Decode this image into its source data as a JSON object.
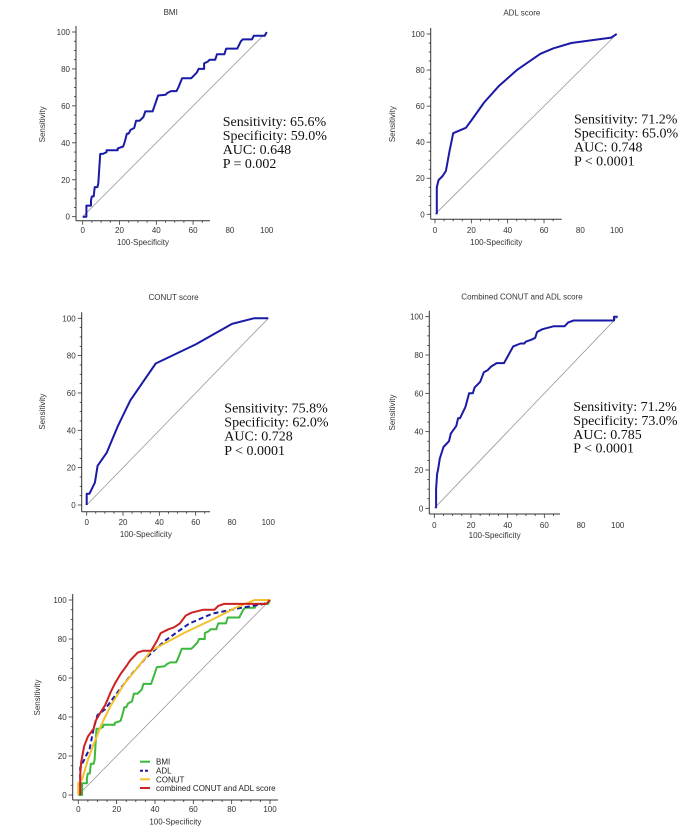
{
  "chart_data": [
    {
      "type": "line",
      "title": "BMI",
      "xlabel": "100-Specificity",
      "ylabel": "Sensitivity",
      "xlim": [
        0,
        100
      ],
      "ylim": [
        0,
        100
      ],
      "xticks": [
        "0",
        "20",
        "40",
        "60",
        "80",
        "100"
      ],
      "yticks": [
        "0",
        "20",
        "40",
        "60",
        "80",
        "100"
      ],
      "stats": [
        "Sensitivity: 65.6%",
        "Specificity: 59.0%",
        "AUC: 0.648",
        "P = 0.002"
      ],
      "series": [
        {
          "name": "BMI",
          "color": "#1a1aa6",
          "points": [
            [
              0,
              0
            ],
            [
              2,
              0
            ],
            [
              2,
              6
            ],
            [
              4.5,
              6
            ],
            [
              4.5,
              9
            ],
            [
              5,
              11
            ],
            [
              6,
              11
            ],
            [
              6.5,
              16
            ],
            [
              8,
              16
            ],
            [
              8.5,
              18
            ],
            [
              9.5,
              34
            ],
            [
              11,
              34
            ],
            [
              13,
              35
            ],
            [
              13,
              36
            ],
            [
              19,
              36
            ],
            [
              19,
              37
            ],
            [
              22,
              38
            ],
            [
              23,
              41
            ],
            [
              24,
              45
            ],
            [
              25,
              45
            ],
            [
              26,
              47
            ],
            [
              28,
              48
            ],
            [
              29,
              52
            ],
            [
              31,
              52
            ],
            [
              33,
              54
            ],
            [
              34,
              57
            ],
            [
              38,
              57
            ],
            [
              41,
              65.6
            ],
            [
              45,
              66
            ],
            [
              46,
              67
            ],
            [
              48,
              68
            ],
            [
              51,
              68
            ],
            [
              52,
              70
            ],
            [
              54,
              75
            ],
            [
              59,
              75
            ],
            [
              62,
              78
            ],
            [
              63,
              80
            ],
            [
              66,
              80
            ],
            [
              66,
              83
            ],
            [
              68,
              84
            ],
            [
              69,
              85
            ],
            [
              72,
              85
            ],
            [
              73,
              88
            ],
            [
              77,
              88
            ],
            [
              78,
              91
            ],
            [
              84,
              91
            ],
            [
              86,
              95
            ],
            [
              87,
              96
            ],
            [
              92,
              96
            ],
            [
              93,
              98
            ],
            [
              99,
              98
            ],
            [
              100,
              100
            ]
          ]
        }
      ]
    },
    {
      "type": "line",
      "title": "ADL score",
      "xlabel": "100-Specificity",
      "ylabel": "Sensitivity",
      "xlim": [
        0,
        100
      ],
      "ylim": [
        0,
        100
      ],
      "xticks": [
        "0",
        "20",
        "40",
        "60",
        "80",
        "100"
      ],
      "yticks": [
        "0",
        "20",
        "40",
        "60",
        "80",
        "100"
      ],
      "stats": [
        "Sensitivity: 71.2%",
        "Specificity: 65.0%",
        "AUC: 0.748",
        "P < 0.0001"
      ],
      "series": [
        {
          "name": "ADL",
          "color": "#1a1aa6",
          "points": [
            [
              1,
              0
            ],
            [
              1,
              15
            ],
            [
              2,
              19
            ],
            [
              4,
              21
            ],
            [
              6,
              24
            ],
            [
              8,
              35
            ],
            [
              10,
              45
            ],
            [
              17,
              48
            ],
            [
              20,
              52
            ],
            [
              27,
              62
            ],
            [
              35,
              71
            ],
            [
              45,
              80
            ],
            [
              58,
              89
            ],
            [
              65,
              92
            ],
            [
              75,
              95
            ],
            [
              97,
              98
            ],
            [
              100,
              100
            ]
          ]
        }
      ]
    },
    {
      "type": "line",
      "title": "CONUT score",
      "xlabel": "100-Specificity",
      "ylabel": "Sensitivity",
      "xlim": [
        0,
        100
      ],
      "ylim": [
        0,
        100
      ],
      "xticks": [
        "0",
        "20",
        "40",
        "60",
        "80",
        "100"
      ],
      "yticks": [
        "0",
        "20",
        "40",
        "60",
        "80",
        "100"
      ],
      "stats": [
        "Sensitivity: 75.8%",
        "Specificity: 62.0%",
        "AUC: 0.728",
        "P < 0.0001"
      ],
      "series": [
        {
          "name": "CONUT",
          "color": "#1a1aa6",
          "points": [
            [
              0,
              0
            ],
            [
              0,
              6
            ],
            [
              1.5,
              6
            ],
            [
              4.5,
              12
            ],
            [
              6,
              21
            ],
            [
              11,
              28
            ],
            [
              17,
              42
            ],
            [
              24,
              56
            ],
            [
              38,
              75.8
            ],
            [
              60,
              86
            ],
            [
              80,
              97
            ],
            [
              92,
              100
            ],
            [
              100,
              100
            ]
          ]
        }
      ]
    },
    {
      "type": "line",
      "title": "Combined CONUT and ADL score",
      "xlabel": "100-Specificity",
      "ylabel": "Sensitivity",
      "xlim": [
        0,
        100
      ],
      "ylim": [
        0,
        100
      ],
      "xticks": [
        "0",
        "20",
        "40",
        "60",
        "80",
        "100"
      ],
      "yticks": [
        "0",
        "20",
        "40",
        "60",
        "80",
        "100"
      ],
      "stats": [
        "Sensitivity: 71.2%",
        "Specificity: 73.0%",
        "AUC: 0.785",
        "P < 0.0001"
      ],
      "series": [
        {
          "name": "Combined",
          "color": "#1a1aa6",
          "points": [
            [
              1,
              0
            ],
            [
              1,
              10
            ],
            [
              1.5,
              18
            ],
            [
              2,
              20
            ],
            [
              3,
              26
            ],
            [
              5,
              32
            ],
            [
              8,
              35
            ],
            [
              9,
              39
            ],
            [
              12,
              43
            ],
            [
              13,
              47
            ],
            [
              14,
              47
            ],
            [
              17,
              53
            ],
            [
              19,
              60
            ],
            [
              21,
              60
            ],
            [
              22,
              63
            ],
            [
              25,
              66
            ],
            [
              27,
              71
            ],
            [
              29,
              72
            ],
            [
              31,
              74
            ],
            [
              34,
              75.8
            ],
            [
              38,
              75.8
            ],
            [
              41,
              81
            ],
            [
              43,
              84.5
            ],
            [
              47,
              86
            ],
            [
              49,
              86
            ],
            [
              50,
              87
            ],
            [
              53,
              88
            ],
            [
              55,
              89
            ],
            [
              56,
              92
            ],
            [
              59,
              93.5
            ],
            [
              65,
              95
            ],
            [
              71,
              95
            ],
            [
              73,
              97
            ],
            [
              76,
              98
            ],
            [
              98,
              98
            ],
            [
              98,
              100
            ],
            [
              100,
              100
            ]
          ]
        }
      ]
    },
    {
      "type": "line",
      "title": "",
      "xlabel": "100-Specificity",
      "ylabel": "Sensitivity",
      "xlim": [
        0,
        100
      ],
      "ylim": [
        0,
        100
      ],
      "xticks": [
        "0",
        "20",
        "40",
        "60",
        "80",
        "100"
      ],
      "yticks": [
        "0",
        "20",
        "40",
        "60",
        "80",
        "100"
      ],
      "legend": "bottom-right",
      "series": [
        {
          "name": "BMI",
          "color": "#3cb83c",
          "dash": false,
          "points": [
            [
              0,
              0
            ],
            [
              2,
              0
            ],
            [
              2,
              6
            ],
            [
              4.5,
              6
            ],
            [
              4.5,
              9
            ],
            [
              5,
              11
            ],
            [
              6,
              11
            ],
            [
              6.5,
              16
            ],
            [
              8,
              16
            ],
            [
              8.5,
              18
            ],
            [
              9.5,
              34
            ],
            [
              11,
              34
            ],
            [
              13,
              35
            ],
            [
              13,
              36
            ],
            [
              19,
              36
            ],
            [
              19,
              37
            ],
            [
              22,
              38
            ],
            [
              23,
              41
            ],
            [
              24,
              45
            ],
            [
              25,
              45
            ],
            [
              26,
              47
            ],
            [
              28,
              48
            ],
            [
              29,
              52
            ],
            [
              31,
              52
            ],
            [
              33,
              54
            ],
            [
              34,
              57
            ],
            [
              38,
              57
            ],
            [
              41,
              65.6
            ],
            [
              45,
              66
            ],
            [
              46,
              67
            ],
            [
              48,
              68
            ],
            [
              51,
              68
            ],
            [
              52,
              70
            ],
            [
              54,
              75
            ],
            [
              59,
              75
            ],
            [
              62,
              78
            ],
            [
              63,
              80
            ],
            [
              66,
              80
            ],
            [
              66,
              83
            ],
            [
              68,
              84
            ],
            [
              69,
              85
            ],
            [
              72,
              85
            ],
            [
              73,
              88
            ],
            [
              77,
              88
            ],
            [
              78,
              91
            ],
            [
              84,
              91
            ],
            [
              86,
              95
            ],
            [
              87,
              96
            ],
            [
              92,
              96
            ],
            [
              93,
              98
            ],
            [
              99,
              98
            ],
            [
              100,
              100
            ]
          ]
        },
        {
          "name": "ADL",
          "color": "#1a1aa6",
          "dash": true,
          "points": [
            [
              1,
              0
            ],
            [
              1,
              14
            ],
            [
              3,
              18
            ],
            [
              6,
              24
            ],
            [
              8,
              34
            ],
            [
              10,
              41
            ],
            [
              14,
              44
            ],
            [
              20,
              52
            ],
            [
              27,
              61
            ],
            [
              35,
              70
            ],
            [
              45,
              79
            ],
            [
              58,
              88
            ],
            [
              70,
              93
            ],
            [
              85,
              96
            ],
            [
              97,
              98
            ],
            [
              100,
              100
            ]
          ]
        },
        {
          "name": "CONUT",
          "color": "#f2c12e",
          "dash": false,
          "points": [
            [
              0,
              0
            ],
            [
              0,
              6
            ],
            [
              2,
              8
            ],
            [
              5,
              18
            ],
            [
              8,
              26
            ],
            [
              12,
              36
            ],
            [
              17,
              46
            ],
            [
              24,
              57
            ],
            [
              38,
              74
            ],
            [
              55,
              83
            ],
            [
              70,
              90
            ],
            [
              82,
              96
            ],
            [
              92,
              100
            ],
            [
              100,
              100
            ]
          ]
        },
        {
          "name": "combined CONUT and ADL score",
          "color": "#cc2222",
          "dash": false,
          "points": [
            [
              1,
              0
            ],
            [
              1,
              10
            ],
            [
              1.5,
              17
            ],
            [
              3,
              25
            ],
            [
              5,
              30
            ],
            [
              8,
              34
            ],
            [
              9,
              38
            ],
            [
              12,
              43
            ],
            [
              14,
              46
            ],
            [
              17,
              53
            ],
            [
              19,
              57
            ],
            [
              22,
              62
            ],
            [
              25,
              66
            ],
            [
              27,
              69
            ],
            [
              31,
              73
            ],
            [
              34,
              74
            ],
            [
              38,
              74
            ],
            [
              41,
              79
            ],
            [
              43,
              83
            ],
            [
              47,
              85
            ],
            [
              50,
              86
            ],
            [
              53,
              88
            ],
            [
              56,
              92
            ],
            [
              59,
              93.5
            ],
            [
              65,
              95
            ],
            [
              71,
              95
            ],
            [
              73,
              97
            ],
            [
              76,
              98
            ],
            [
              98,
              98
            ],
            [
              100,
              100
            ]
          ]
        }
      ]
    }
  ]
}
